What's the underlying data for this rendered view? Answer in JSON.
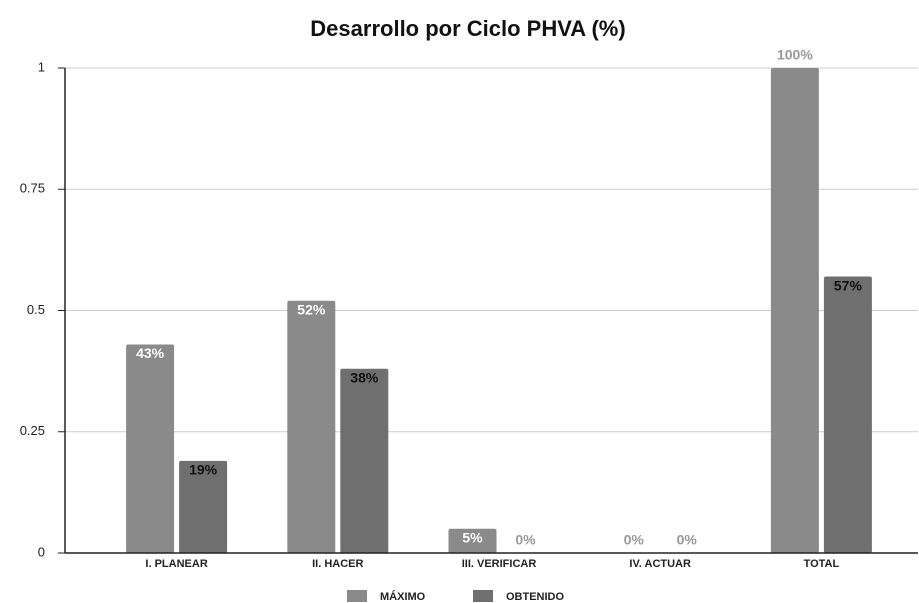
{
  "chart_data": {
    "type": "bar",
    "title": "Desarrollo por Ciclo PHVA (%)",
    "categories": [
      "I. PLANEAR",
      "II. HACER",
      "III. VERIFICAR",
      "IV. ACTUAR",
      "TOTAL"
    ],
    "series": [
      {
        "name": "MÁXIMO",
        "color": "#8a8a8a",
        "values": [
          0.43,
          0.52,
          0.05,
          0,
          1
        ],
        "value_labels": [
          "43%",
          "52%",
          "5%",
          "0%",
          "100%"
        ]
      },
      {
        "name": "OBTENIDO",
        "color": "#6f6f6f",
        "values": [
          0.19,
          0.38,
          0,
          0,
          0.57
        ],
        "value_labels": [
          "19%",
          "38%",
          "0%",
          "0%",
          "57%"
        ]
      }
    ],
    "ylim": [
      0,
      1
    ],
    "yticks": [
      0,
      0.25,
      0.5,
      0.75,
      1
    ],
    "grid": true,
    "legend": "bottom"
  }
}
